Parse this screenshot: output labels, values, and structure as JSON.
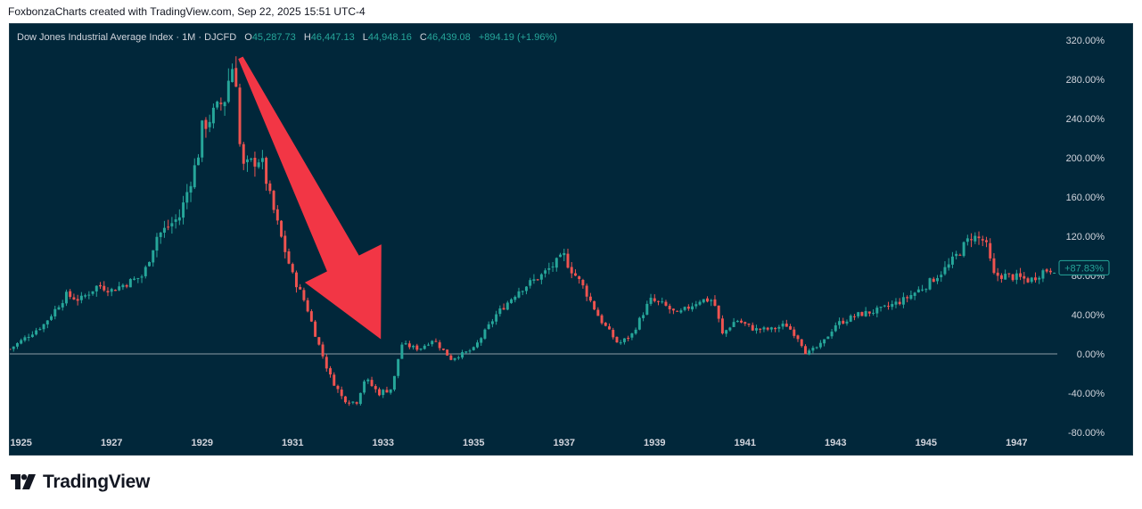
{
  "header": {
    "text": "FoxbonzaCharts created with TradingView.com, Sep 22, 2025 15:51 UTC-4"
  },
  "legend": {
    "symbol": "Dow Jones Industrial Average Index · 1M · DJCFD",
    "open_key": "O",
    "open": "45,287.73",
    "high_key": "H",
    "high": "46,447.13",
    "low_key": "L",
    "low": "44,948.16",
    "close_key": "C",
    "close": "46,439.08",
    "change": "+894.19 (+1.96%)"
  },
  "footer": {
    "brand": "TradingView",
    "logo_icon": "tradingview-logo-icon"
  },
  "colors": {
    "background": "#01273a",
    "up": "#26a69a",
    "down": "#ef5350",
    "arrow": "#f23645",
    "axis_text": "#d1d4dc",
    "zero_line": "#d1d4dc"
  },
  "chart_data": {
    "type": "candlestick",
    "title": "Dow Jones Industrial Average Index · 1M · DJCFD",
    "y_unit": "percent change",
    "ylim": [
      -100,
      330
    ],
    "x_range": [
      1924.75,
      1947.9
    ],
    "x_ticks": [
      "1925",
      "1927",
      "1929",
      "1931",
      "1933",
      "1935",
      "1937",
      "1939",
      "1941",
      "1943",
      "1945",
      "1947"
    ],
    "y_ticks": [
      "320.00%",
      "280.00%",
      "240.00%",
      "200.00%",
      "160.00%",
      "120.00%",
      "80.00%",
      "40.00%",
      "0.00%",
      "-40.00%",
      "-80.00%"
    ],
    "y_tick_values": [
      320,
      280,
      240,
      200,
      160,
      120,
      80,
      40,
      0,
      -40,
      -80
    ],
    "zero_line": 0,
    "last_value_label": "+87.83%",
    "last_value": 87.83,
    "path_x": [
      1924.75,
      1925.5,
      1926.0,
      1926.3,
      1926.7,
      1927.0,
      1927.7,
      1928.0,
      1928.5,
      1928.9,
      1929.0,
      1929.5,
      1929.65,
      1929.75,
      1929.85,
      1929.9,
      1930.3,
      1930.5,
      1930.8,
      1931.0,
      1931.3,
      1931.5,
      1931.8,
      1932.1,
      1932.4,
      1932.6,
      1932.9,
      1933.2,
      1933.4,
      1933.8,
      1934.1,
      1934.5,
      1935.0,
      1935.5,
      1936.0,
      1936.5,
      1937.0,
      1937.1,
      1937.4,
      1937.8,
      1938.2,
      1938.5,
      1938.9,
      1939.2,
      1939.5,
      1940.0,
      1940.3,
      1940.5,
      1940.8,
      1941.2,
      1941.6,
      1941.9,
      1942.2,
      1942.35,
      1942.7,
      1943.0,
      1943.5,
      1944.0,
      1944.5,
      1945.0,
      1945.5,
      1946.0,
      1946.3,
      1946.5,
      1946.7,
      1947.0,
      1947.3,
      1947.6,
      1947.9
    ],
    "path_y": [
      5,
      30,
      60,
      55,
      70,
      65,
      80,
      120,
      140,
      200,
      230,
      260,
      295,
      280,
      200,
      190,
      200,
      160,
      110,
      80,
      50,
      20,
      -20,
      -45,
      -50,
      -25,
      -40,
      -35,
      10,
      5,
      15,
      -5,
      5,
      40,
      65,
      80,
      100,
      90,
      70,
      35,
      10,
      20,
      55,
      50,
      40,
      55,
      55,
      20,
      35,
      25,
      25,
      30,
      15,
      0,
      10,
      30,
      40,
      45,
      55,
      70,
      90,
      120,
      115,
      80,
      80,
      78,
      75,
      85,
      87.83
    ],
    "arrow": {
      "tail": [
        1929.85,
        302
      ],
      "head_tip": [
        1932.95,
        15
      ],
      "description": "large red arrow pointing down"
    }
  }
}
